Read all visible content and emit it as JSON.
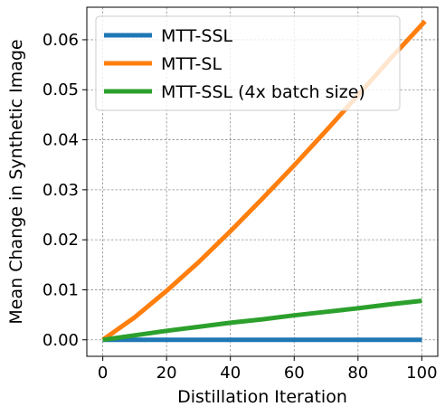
{
  "chart_data": {
    "type": "line",
    "title": "",
    "xlabel": "Distillation Iteration",
    "ylabel": "Mean Change in Synthetic Image",
    "xlim": [
      -5,
      105
    ],
    "ylim": [
      -0.0033,
      0.0665
    ],
    "xticks": [
      0,
      20,
      40,
      60,
      80,
      100
    ],
    "yticks": [
      0.0,
      0.01,
      0.02,
      0.03,
      0.04,
      0.05,
      0.06
    ],
    "xtick_labels": [
      "0",
      "20",
      "40",
      "60",
      "80",
      "100"
    ],
    "ytick_labels": [
      "0.00",
      "0.01",
      "0.02",
      "0.03",
      "0.04",
      "0.05",
      "0.06"
    ],
    "grid": true,
    "legend_position": "upper-left",
    "series": [
      {
        "name": "MTT-SSL",
        "color": "#1f77b4",
        "x": [
          0,
          10,
          20,
          30,
          40,
          50,
          60,
          70,
          80,
          90,
          100
        ],
        "y": [
          0,
          0,
          0,
          0,
          0,
          0,
          0,
          0,
          0,
          0,
          0
        ]
      },
      {
        "name": "MTT-SL",
        "color": "#ff7f0e",
        "x": [
          0,
          10,
          20,
          30,
          40,
          50,
          60,
          70,
          80,
          90,
          101
        ],
        "y": [
          0,
          0.0045,
          0.0098,
          0.0155,
          0.0217,
          0.0282,
          0.0349,
          0.0418,
          0.0489,
          0.0561,
          0.0637
        ]
      },
      {
        "name": "MTT-SSL (4x batch size)",
        "color": "#2ca02c",
        "x": [
          0,
          10,
          20,
          30,
          40,
          50,
          60,
          70,
          80,
          90,
          100
        ],
        "y": [
          0,
          0.0009,
          0.0018,
          0.0026,
          0.0034,
          0.0041,
          0.0049,
          0.0056,
          0.0063,
          0.0071,
          0.0078
        ]
      }
    ]
  }
}
